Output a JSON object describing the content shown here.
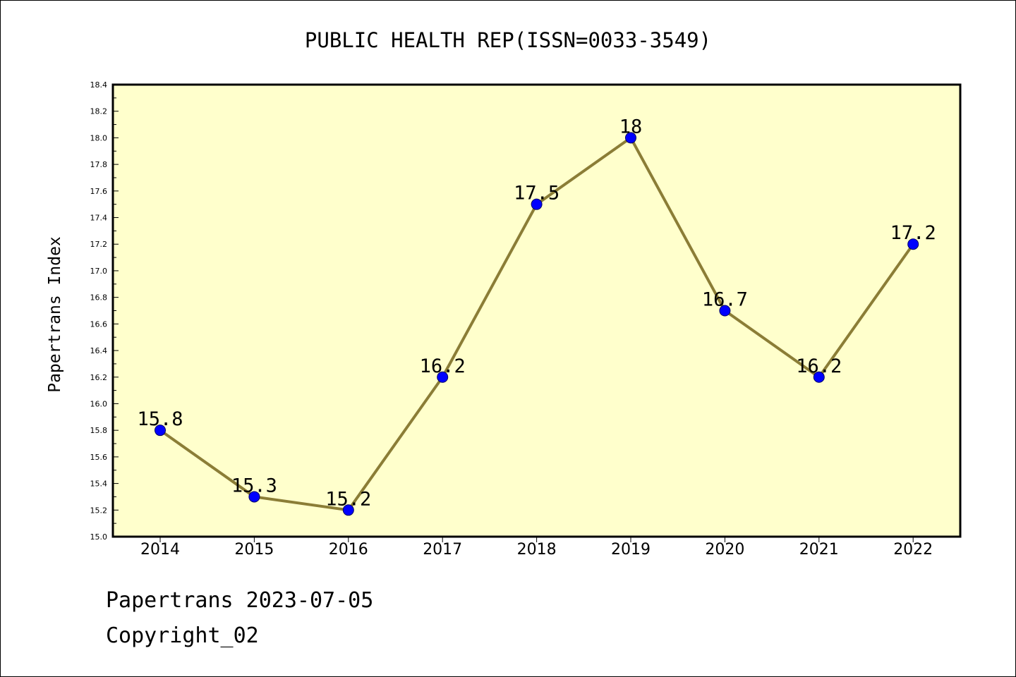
{
  "colors": {
    "plot_background": "#ffffcc",
    "line": "#8b7d36",
    "marker_fill": "#0000ff",
    "marker_stroke": "#000066",
    "text": "#000000"
  },
  "footer": {
    "date_text": "Papertrans 2023-07-05",
    "copyright_text": "Copyright_02"
  },
  "chart_data": {
    "type": "line",
    "title": "PUBLIC HEALTH REP(ISSN=0033-3549)",
    "xlabel": "",
    "ylabel": "Papertrans Index",
    "categories": [
      "2014",
      "2015",
      "2016",
      "2017",
      "2018",
      "2019",
      "2020",
      "2021",
      "2022"
    ],
    "values": [
      15.8,
      15.3,
      15.2,
      16.2,
      17.5,
      18.0,
      16.7,
      16.2,
      17.2
    ],
    "data_labels": [
      "15.8",
      "15.3",
      "15.2",
      "16.2",
      "17.5",
      "18",
      "16.7",
      "16.2",
      "17.2"
    ],
    "ylim": [
      15.0,
      18.4
    ],
    "y_ticks": [
      "15.0",
      "15.2",
      "15.4",
      "15.6",
      "15.8",
      "16.0",
      "16.2",
      "16.4",
      "16.6",
      "16.8",
      "17.0",
      "17.2",
      "17.4",
      "17.6",
      "17.8",
      "18.0",
      "18.2",
      "18.4"
    ],
    "grid": false,
    "legend": "none"
  }
}
